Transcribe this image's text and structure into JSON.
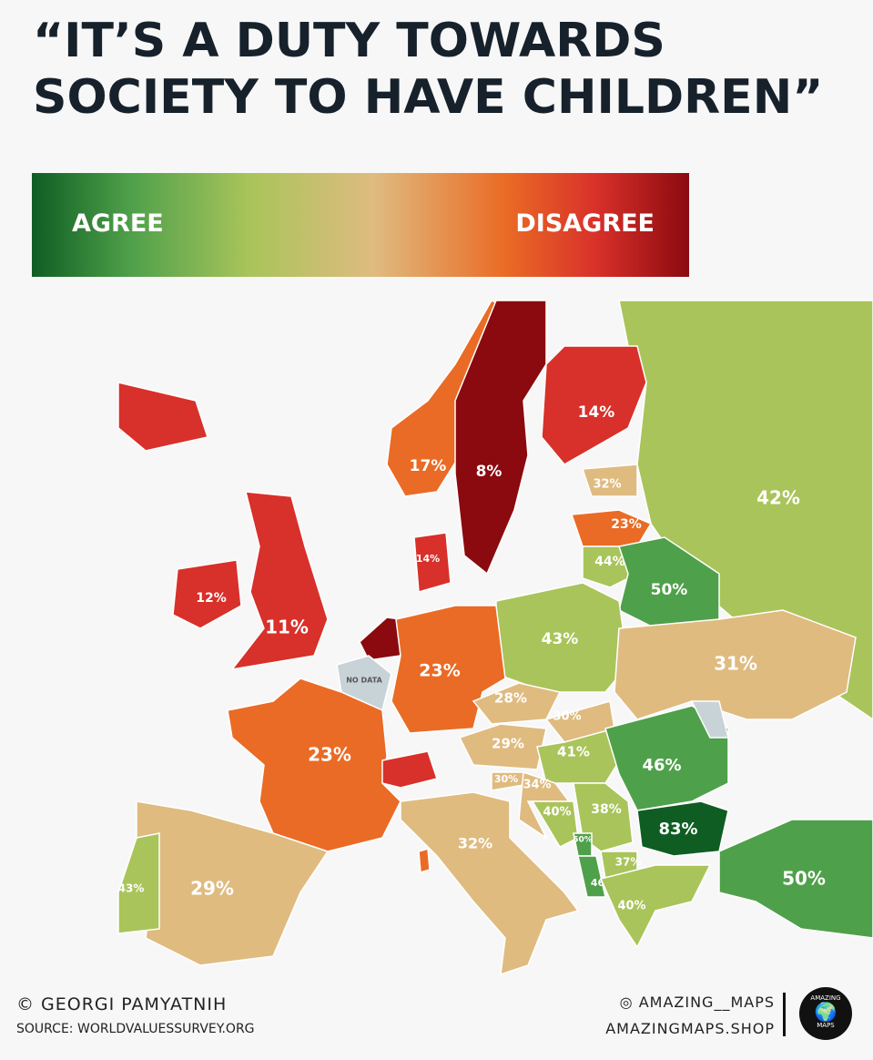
{
  "title": [
    "“IT’S A DUTY TOWARDS",
    "SOCIETY TO HAVE CHILDREN”"
  ],
  "legend": {
    "agree": "AGREE",
    "disagree": "DISAGREE"
  },
  "colors": {
    "dark_red": "#8b0a0f",
    "red": "#d8302a",
    "orange": "#ea6b25",
    "tan": "#dfbb80",
    "light_green": "#a9c45a",
    "green": "#4fa04a",
    "dark_green": "#0f5d23",
    "no_data": "#c8d3d8"
  },
  "regions": {
    "iceland": {
      "value": "",
      "color": "red"
    },
    "ireland": {
      "value": "12%",
      "color": "red"
    },
    "uk": {
      "value": "11%",
      "color": "red"
    },
    "norway": {
      "value": "17%",
      "color": "orange"
    },
    "sweden": {
      "value": "8%",
      "color": "dark_red"
    },
    "finland": {
      "value": "14%",
      "color": "red"
    },
    "russia": {
      "value": "42%",
      "color": "light_green"
    },
    "estonia": {
      "value": "32%",
      "color": "tan"
    },
    "latvia": {
      "value": "23%",
      "color": "orange"
    },
    "lithuania": {
      "value": "44%",
      "color": "light_green"
    },
    "belarus": {
      "value": "50%",
      "color": "green"
    },
    "poland": {
      "value": "43%",
      "color": "light_green"
    },
    "ukraine": {
      "value": "31%",
      "color": "tan"
    },
    "denmark": {
      "value": "14%",
      "color": "red"
    },
    "netherlands": {
      "value": "",
      "color": "dark_red"
    },
    "belgium": {
      "value": "NO DATA",
      "color": "no_data"
    },
    "germany": {
      "value": "23%",
      "color": "orange"
    },
    "france": {
      "value": "23%",
      "color": "orange"
    },
    "switzerland": {
      "value": "",
      "color": "red"
    },
    "spain": {
      "value": "29%",
      "color": "tan"
    },
    "portugal": {
      "value": "43%",
      "color": "light_green"
    },
    "italy": {
      "value": "32%",
      "color": "tan"
    },
    "czechia": {
      "value": "28%",
      "color": "tan"
    },
    "austria": {
      "value": "29%",
      "color": "tan"
    },
    "slovakia": {
      "value": "30%",
      "color": "tan"
    },
    "hungary": {
      "value": "41%",
      "color": "light_green"
    },
    "slovenia": {
      "value": "30%",
      "color": "tan"
    },
    "croatia": {
      "value": "34%",
      "color": "tan"
    },
    "bosnia": {
      "value": "40%",
      "color": "light_green"
    },
    "serbia": {
      "value": "38%",
      "color": "light_green"
    },
    "romania": {
      "value": "46%",
      "color": "green"
    },
    "moldova": {
      "value": "",
      "color": "no_data"
    },
    "bulgaria": {
      "value": "83%",
      "color": "dark_green"
    },
    "montenegro": {
      "value": "50%",
      "color": "green"
    },
    "albania": {
      "value": "46%",
      "color": "green"
    },
    "north_macedonia": {
      "value": "37%",
      "color": "light_green"
    },
    "greece": {
      "value": "40%",
      "color": "light_green"
    },
    "turkey": {
      "value": "50%",
      "color": "green"
    },
    "corsica": {
      "value": "",
      "color": "orange"
    }
  },
  "footer": {
    "credit": "© GEORGI PAMYATNIH",
    "source": "SOURCE: WORLDVALUESSURVEY.ORG",
    "instagram": "AMAZING__MAPS",
    "shop": "AMAZINGMAPS.SHOP",
    "logo_text": [
      "AMAZING",
      "MAPS"
    ]
  }
}
